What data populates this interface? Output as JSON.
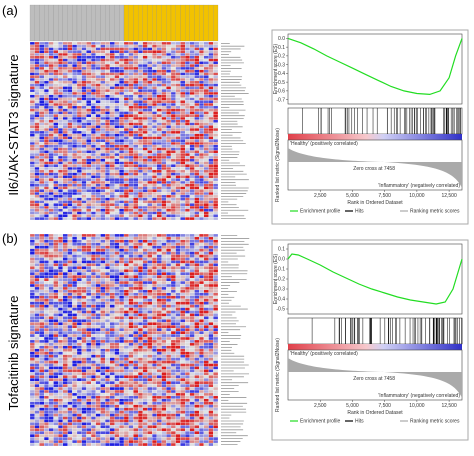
{
  "panels": [
    {
      "label": "(a)",
      "signature": "Il6/JAK-STAT3 signature",
      "es_plot": {
        "ylabel": "Enrichment score (ES)",
        "xlabel": "Rank in Ordered Dataset",
        "metric_label": "Ranked list metric (Signal2Noise)",
        "zero_cross": "Zero cross at 7458",
        "pos_label": "'Healthy' (positively correlated)",
        "neg_label": "'Inflammatory' (negatively correlated)",
        "legend": [
          "Enrichment profile",
          "Hits",
          "Ranking metric scores"
        ],
        "ylim": [
          -0.75,
          0.05
        ],
        "yticks": [
          {
            "value": 0,
            "label": "0.0"
          },
          -0.1,
          -0.2,
          -0.3,
          -0.4,
          -0.5,
          -0.6,
          -0.7
        ],
        "xlim": [
          0,
          13500
        ],
        "xticks": [
          {
            "value": 2500,
            "label": "2,500"
          },
          {
            "value": 5000,
            "label": "5,000"
          },
          {
            "value": 7500,
            "label": "7,500"
          },
          {
            "value": 10000,
            "label": "10,000"
          },
          {
            "value": 12500,
            "label": "12,500"
          }
        ],
        "x": [
          0,
          1000,
          2000,
          3000,
          4000,
          5000,
          6000,
          7000,
          8000,
          9000,
          10000,
          11000,
          11800,
          12500,
          13000,
          13500
        ],
        "y": [
          0,
          -0.05,
          -0.12,
          -0.2,
          -0.27,
          -0.34,
          -0.41,
          -0.48,
          -0.55,
          -0.6,
          -0.63,
          -0.64,
          -0.6,
          -0.45,
          -0.2,
          0
        ]
      }
    },
    {
      "label": "(b)",
      "signature": "Tofacitinib signature",
      "es_plot": {
        "ylabel": "Enrichment score (ES)",
        "xlabel": "Rank in Ordered Dataset",
        "metric_label": "Ranked list metric (Signal2Noise)",
        "zero_cross": "Zero cross at 7458",
        "pos_label": "'Healthy' (positively correlated)",
        "neg_label": "'Inflammatory' (negatively correlated)",
        "legend": [
          "Enrichment profile",
          "Hits",
          "Ranking metric scores"
        ],
        "ylim": [
          -0.55,
          0.15
        ],
        "yticks": [
          0.1,
          {
            "value": 0,
            "label": "0.0"
          },
          -0.1,
          -0.2,
          -0.3,
          -0.4,
          -0.5
        ],
        "xlim": [
          0,
          13500
        ],
        "xticks": [
          {
            "value": 2500,
            "label": "2,500"
          },
          {
            "value": 5000,
            "label": "5,000"
          },
          {
            "value": 7500,
            "label": "7,500"
          },
          {
            "value": 10000,
            "label": "10,000"
          },
          {
            "value": 12500,
            "label": "12,500"
          }
        ],
        "x": [
          0,
          300,
          800,
          1500,
          2500,
          3500,
          4500,
          5500,
          6500,
          7500,
          8500,
          9500,
          10500,
          11500,
          12200,
          12800,
          13500
        ],
        "y": [
          0,
          0.05,
          0.04,
          0,
          -0.06,
          -0.13,
          -0.19,
          -0.25,
          -0.3,
          -0.34,
          -0.38,
          -0.41,
          -0.43,
          -0.45,
          -0.43,
          -0.3,
          0
        ]
      }
    }
  ]
}
